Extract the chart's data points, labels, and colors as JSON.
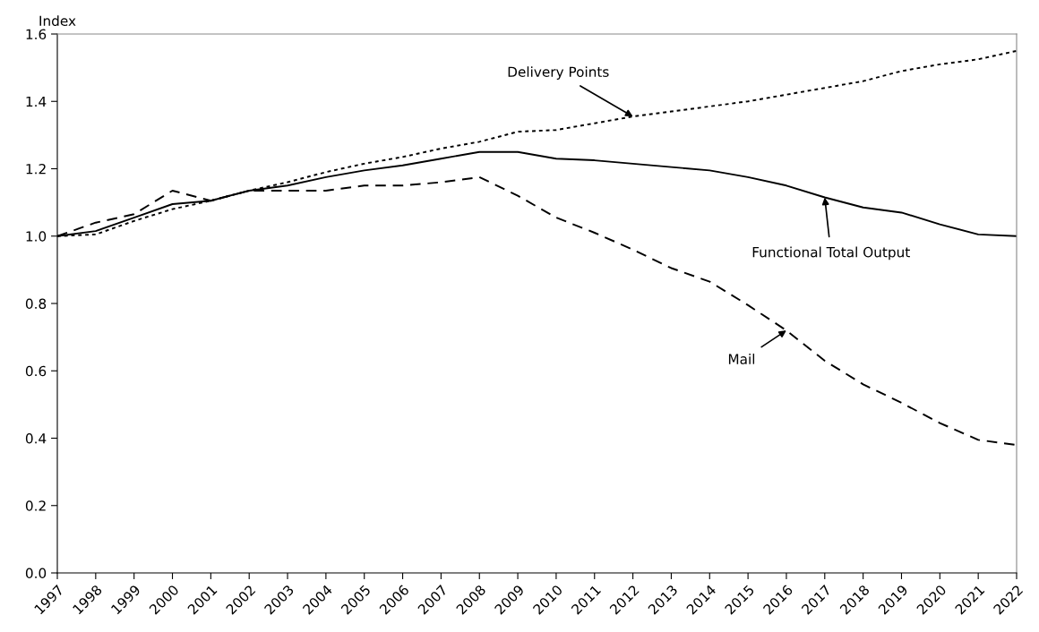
{
  "chart_data": {
    "type": "line",
    "ylabel": "Index",
    "x": [
      1997,
      1998,
      1999,
      2000,
      2001,
      2002,
      2003,
      2004,
      2005,
      2006,
      2007,
      2008,
      2009,
      2010,
      2011,
      2012,
      2013,
      2014,
      2015,
      2016,
      2017,
      2018,
      2019,
      2020,
      2021,
      2022
    ],
    "series": [
      {
        "name": "Delivery Points",
        "color": "#000000",
        "line_style": "dotted",
        "values": [
          1.0,
          1.005,
          1.045,
          1.08,
          1.105,
          1.135,
          1.16,
          1.19,
          1.215,
          1.235,
          1.26,
          1.28,
          1.31,
          1.315,
          1.335,
          1.355,
          1.37,
          1.385,
          1.4,
          1.42,
          1.44,
          1.46,
          1.49,
          1.51,
          1.525,
          1.55
        ]
      },
      {
        "name": "Functional Total Output",
        "color": "#000000",
        "line_style": "solid",
        "values": [
          1.0,
          1.015,
          1.055,
          1.095,
          1.105,
          1.135,
          1.15,
          1.175,
          1.195,
          1.21,
          1.23,
          1.25,
          1.25,
          1.23,
          1.225,
          1.215,
          1.205,
          1.195,
          1.175,
          1.15,
          1.115,
          1.085,
          1.07,
          1.035,
          1.005,
          1.0
        ]
      },
      {
        "name": "Mail",
        "color": "#000000",
        "line_style": "dashed",
        "values": [
          1.0,
          1.04,
          1.065,
          1.135,
          1.105,
          1.135,
          1.135,
          1.135,
          1.15,
          1.15,
          1.16,
          1.175,
          1.12,
          1.055,
          1.01,
          0.96,
          0.905,
          0.865,
          0.795,
          0.72,
          0.63,
          0.56,
          0.505,
          0.445,
          0.395,
          0.38
        ]
      }
    ],
    "xlim": [
      1997,
      2022
    ],
    "xticks": [
      1997,
      1998,
      1999,
      2000,
      2001,
      2002,
      2003,
      2004,
      2005,
      2006,
      2007,
      2008,
      2009,
      2010,
      2011,
      2012,
      2013,
      2014,
      2015,
      2016,
      2017,
      2018,
      2019,
      2020,
      2021,
      2022
    ],
    "ylim": [
      0.0,
      1.6
    ],
    "yticks": [
      {
        "value": 0,
        "label": "0.0"
      },
      0.2,
      0.4,
      0.6,
      0.8,
      {
        "value": 1,
        "label": "1.0"
      },
      1.2,
      1.4,
      1.6
    ],
    "grid": false,
    "legend": false
  }
}
